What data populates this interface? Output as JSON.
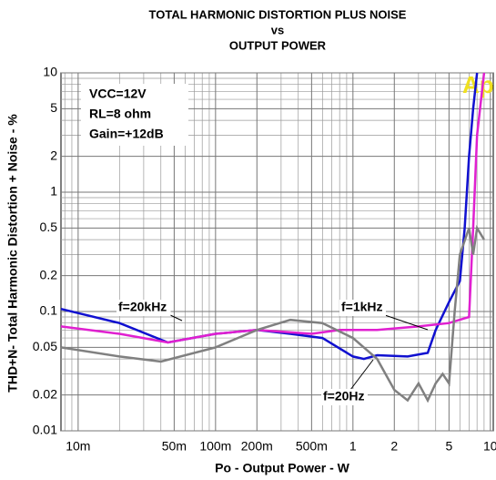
{
  "chart_data": {
    "type": "line",
    "title": [
      "TOTAL HARMONIC DISTORTION PLUS NOISE",
      "vs",
      "OUTPUT POWER"
    ],
    "x_label": "Po - Output Power - W",
    "y_label": "THD+N- Total Harmonic Distortion + Noise - %",
    "xscale": "log",
    "yscale": "log",
    "grid": true,
    "xlim": [
      0.0075,
      10.5
    ],
    "ylim": [
      0.01,
      10
    ],
    "xticks": [
      {
        "value": 0.01,
        "label": "10m"
      },
      {
        "value": 0.05,
        "label": "50m"
      },
      {
        "value": 0.1,
        "label": "100m"
      },
      {
        "value": 0.2,
        "label": "200m"
      },
      {
        "value": 0.5,
        "label": "500m"
      },
      1,
      2,
      5,
      10
    ],
    "x_minor_ticks": [
      0.008,
      0.009,
      0.02,
      0.03,
      0.04,
      0.06,
      0.07,
      0.08,
      0.09,
      0.3,
      0.4,
      0.6,
      0.7,
      0.8,
      0.9,
      3,
      4,
      6,
      7,
      8,
      9
    ],
    "yticks": [
      10,
      5,
      2,
      1,
      0.5,
      0.2,
      0.1,
      0.05,
      0.02,
      0.01
    ],
    "y_minor_ticks": [
      0.03,
      0.04,
      0.06,
      0.07,
      0.08,
      0.09,
      0.3,
      0.4,
      0.6,
      0.7,
      0.8,
      0.9,
      3,
      4,
      6,
      7,
      8,
      9
    ],
    "annotations": [
      "VCC=12V",
      "RL=8 ohm",
      "Gain=+12dB",
      "Ap"
    ],
    "series": [
      {
        "name": "f=20kHz",
        "color": "#1010d0",
        "x": [
          0.0075,
          0.02,
          0.045,
          0.1,
          0.2,
          0.35,
          0.6,
          1.0,
          1.2,
          1.5,
          2.5,
          3.5,
          4,
          5,
          6,
          6.5,
          7,
          7.5,
          8
        ],
        "values": [
          0.105,
          0.08,
          0.055,
          0.065,
          0.07,
          0.065,
          0.06,
          0.042,
          0.04,
          0.043,
          0.042,
          0.045,
          0.07,
          0.12,
          0.18,
          0.5,
          2,
          5,
          10
        ]
      },
      {
        "name": "f=1kHz",
        "color": "#e020d0",
        "x": [
          0.0075,
          0.02,
          0.045,
          0.1,
          0.2,
          0.5,
          0.8,
          1.5,
          3,
          5,
          7,
          7.5,
          8,
          9
        ],
        "values": [
          0.075,
          0.065,
          0.055,
          0.065,
          0.07,
          0.065,
          0.07,
          0.07,
          0.075,
          0.08,
          0.09,
          0.5,
          3,
          10
        ]
      },
      {
        "name": "f=20Hz",
        "color": "#808080",
        "x": [
          0.0075,
          0.02,
          0.04,
          0.1,
          0.2,
          0.35,
          0.6,
          1,
          1.5,
          2,
          2.5,
          3,
          3.5,
          4,
          4.5,
          5,
          5.5,
          6,
          7,
          7.5,
          8,
          9
        ],
        "values": [
          0.05,
          0.042,
          0.038,
          0.05,
          0.07,
          0.085,
          0.08,
          0.06,
          0.04,
          0.022,
          0.018,
          0.025,
          0.018,
          0.025,
          0.03,
          0.025,
          0.1,
          0.3,
          0.5,
          0.3,
          0.5,
          0.4
        ]
      }
    ]
  }
}
